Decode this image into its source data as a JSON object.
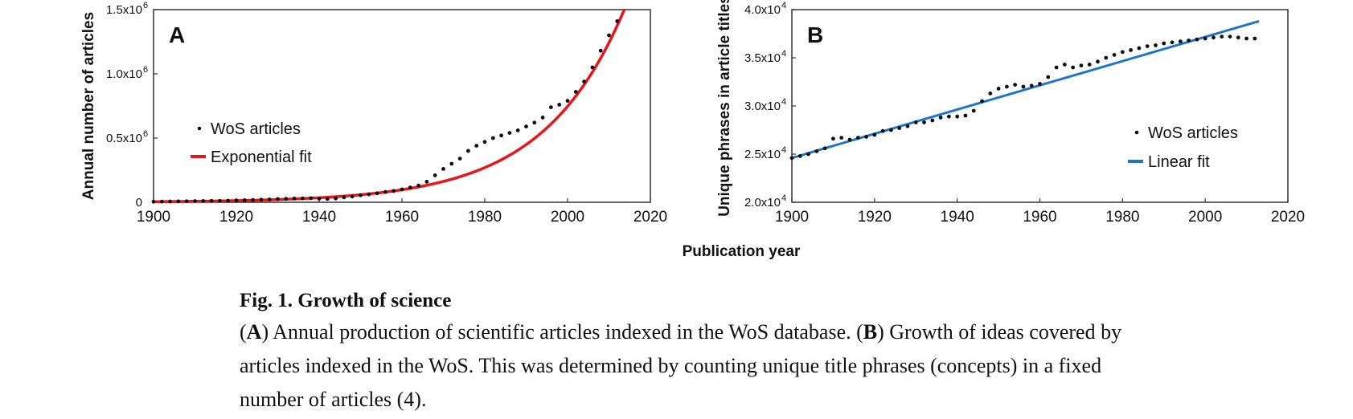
{
  "chart_data": [
    {
      "type": "scatter",
      "panel_label": "A",
      "ylabel": "Annual number of articles",
      "xlim": [
        1900,
        2020
      ],
      "ylim": [
        0,
        1500000
      ],
      "x_ticks": [
        "1900",
        "1920",
        "1940",
        "1960",
        "1980",
        "2000",
        "2020"
      ],
      "y_ticks": [
        {
          "value": 0,
          "label": "0",
          "exp": ""
        },
        {
          "value": 500000,
          "label": "0.5x10",
          "exp": "6"
        },
        {
          "value": 1000000,
          "label": "1.0x10",
          "exp": "6"
        },
        {
          "value": 1500000,
          "label": "1.5x10",
          "exp": "6"
        }
      ],
      "legend": [
        {
          "label": "WoS articles",
          "kind": "point",
          "color": "#111111"
        },
        {
          "label": "Exponential fit",
          "kind": "line",
          "color": "#e8151b"
        }
      ],
      "series": [
        {
          "name": "WoS articles",
          "x": [
            1900,
            1902,
            1904,
            1906,
            1908,
            1910,
            1912,
            1914,
            1916,
            1918,
            1920,
            1922,
            1924,
            1926,
            1928,
            1930,
            1932,
            1934,
            1936,
            1938,
            1940,
            1942,
            1944,
            1946,
            1948,
            1950,
            1952,
            1954,
            1956,
            1958,
            1960,
            1962,
            1964,
            1966,
            1968,
            1970,
            1972,
            1974,
            1976,
            1978,
            1980,
            1982,
            1984,
            1986,
            1988,
            1990,
            1992,
            1994,
            1996,
            1998,
            2000,
            2002,
            2004,
            2006,
            2008,
            2010,
            2012
          ],
          "y": [
            4000,
            5000,
            6000,
            7000,
            8000,
            9000,
            10000,
            11000,
            11000,
            12000,
            14000,
            16000,
            18000,
            20000,
            22000,
            25000,
            27000,
            29000,
            30000,
            32000,
            28000,
            26000,
            30000,
            38000,
            45000,
            55000,
            62000,
            70000,
            80000,
            88000,
            100000,
            115000,
            130000,
            160000,
            210000,
            260000,
            300000,
            340000,
            400000,
            440000,
            470000,
            500000,
            520000,
            540000,
            560000,
            590000,
            620000,
            660000,
            740000,
            760000,
            790000,
            860000,
            940000,
            1050000,
            1180000,
            1300000,
            1410000
          ]
        },
        {
          "name": "Exponential fit",
          "fit": "exponential",
          "a": 4600,
          "b": 0.0509,
          "x0": 1900,
          "x_range": [
            1900,
            2020
          ]
        }
      ]
    },
    {
      "type": "scatter",
      "panel_label": "B",
      "ylabel": "Unique phrases in article titles",
      "xlim": [
        1900,
        2020
      ],
      "ylim": [
        20000,
        40000
      ],
      "x_ticks": [
        "1900",
        "1920",
        "1940",
        "1960",
        "1980",
        "2000",
        "2020"
      ],
      "y_ticks": [
        {
          "value": 20000,
          "label": "2.0x10",
          "exp": "4"
        },
        {
          "value": 25000,
          "label": "2.5x10",
          "exp": "4"
        },
        {
          "value": 30000,
          "label": "3.0x10",
          "exp": "4"
        },
        {
          "value": 35000,
          "label": "3.5x10",
          "exp": "4"
        },
        {
          "value": 40000,
          "label": "4.0x10",
          "exp": "4"
        }
      ],
      "legend": [
        {
          "label": "WoS articles",
          "kind": "point",
          "color": "#111111"
        },
        {
          "label": "Linear fit",
          "kind": "line",
          "color": "#1f77c4"
        }
      ],
      "series": [
        {
          "name": "WoS articles",
          "x": [
            1900,
            1902,
            1904,
            1906,
            1908,
            1910,
            1912,
            1914,
            1916,
            1918,
            1920,
            1922,
            1924,
            1926,
            1928,
            1930,
            1932,
            1934,
            1936,
            1938,
            1940,
            1942,
            1944,
            1946,
            1948,
            1950,
            1952,
            1954,
            1956,
            1958,
            1960,
            1962,
            1964,
            1966,
            1968,
            1970,
            1972,
            1974,
            1976,
            1978,
            1980,
            1982,
            1984,
            1986,
            1988,
            1990,
            1992,
            1994,
            1996,
            1998,
            2000,
            2002,
            2004,
            2006,
            2008,
            2010,
            2012
          ],
          "y": [
            24600,
            24800,
            25000,
            25300,
            25600,
            26600,
            26700,
            26500,
            26700,
            26800,
            27000,
            27400,
            27500,
            27700,
            27900,
            28300,
            28300,
            28500,
            28800,
            28900,
            28900,
            29000,
            29500,
            30500,
            31300,
            31800,
            32000,
            32200,
            32000,
            32100,
            32300,
            33000,
            34000,
            34300,
            34000,
            34200,
            34300,
            34600,
            35000,
            35300,
            35600,
            35800,
            36000,
            36200,
            36300,
            36500,
            36600,
            36700,
            36800,
            36900,
            37000,
            37100,
            37200,
            37200,
            37100,
            37000,
            37000
          ]
        },
        {
          "name": "Linear fit",
          "fit": "linear",
          "x_range": [
            1900,
            2013
          ],
          "y_range": [
            24600,
            38800
          ]
        }
      ]
    }
  ],
  "shared_xlabel": "Publication year",
  "caption": {
    "title": "Fig. 1. Growth of science",
    "body_a_label": "A",
    "body_a_text": ") Annual production of scientific articles indexed in the WoS database. (",
    "body_b_label": "B",
    "body_b_text": ") Growth of ideas covered by articles indexed in the WoS. This was determined by counting unique title phrases (concepts) in a fixed number of articles (4)."
  }
}
